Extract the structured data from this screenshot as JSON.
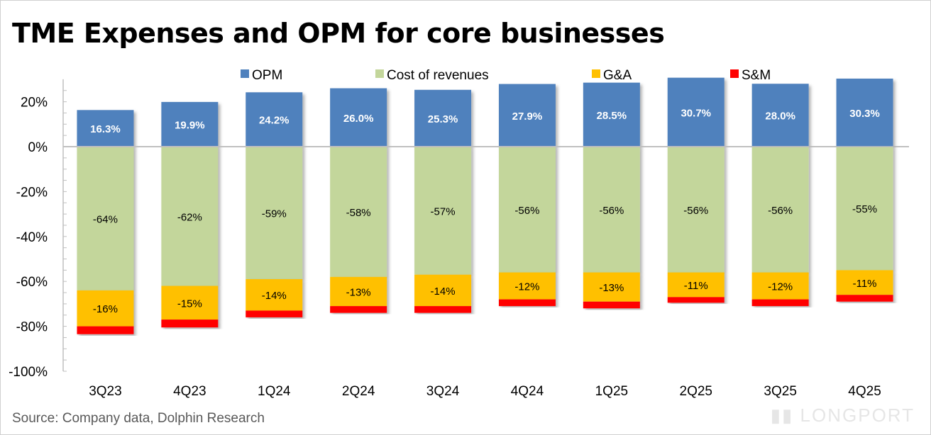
{
  "chart_data": {
    "type": "bar",
    "stacked": true,
    "title": "TME Expenses and OPM for core businesses",
    "categories": [
      "3Q23",
      "4Q23",
      "1Q24",
      "2Q24",
      "3Q24",
      "4Q24",
      "1Q25",
      "2Q25",
      "3Q25",
      "4Q25"
    ],
    "series": [
      {
        "name": "OPM",
        "color": "#4f81bd",
        "values": [
          16.3,
          19.9,
          24.2,
          26.0,
          25.3,
          27.9,
          28.5,
          30.7,
          28.0,
          30.3
        ],
        "labels": [
          "16.3%",
          "19.9%",
          "24.2%",
          "26.0%",
          "25.3%",
          "27.9%",
          "28.5%",
          "30.7%",
          "28.0%",
          "30.3%"
        ]
      },
      {
        "name": "Cost of revenues",
        "color": "#c3d69b",
        "values": [
          -64,
          -62,
          -59,
          -58,
          -57,
          -56,
          -56,
          -56,
          -56,
          -55
        ],
        "labels": [
          "-64%",
          "-62%",
          "-59%",
          "-58%",
          "-57%",
          "-56%",
          "-56%",
          "-56%",
          "-56%",
          "-55%"
        ]
      },
      {
        "name": "G&A",
        "color": "#ffc000",
        "values": [
          -16,
          -15,
          -14,
          -13,
          -14,
          -12,
          -13,
          -11,
          -12,
          -11
        ],
        "labels": [
          "-16%",
          "-15%",
          "-14%",
          "-13%",
          "-14%",
          "-12%",
          "-13%",
          "-11%",
          "-12%",
          "-11%"
        ]
      },
      {
        "name": "S&M",
        "color": "#ff0000",
        "values": [
          -3.5,
          -3.5,
          -3,
          -3,
          -3,
          -3,
          -3,
          -2.5,
          -3,
          -3
        ]
      }
    ],
    "ylim": [
      -100,
      30
    ],
    "yticks": [
      20,
      0,
      -20,
      -40,
      -60,
      -80,
      -100
    ],
    "ytick_labels": [
      "20%",
      "0%",
      "-20%",
      "-40%",
      "-60%",
      "-80%",
      "-100%"
    ],
    "legend": "top",
    "grid": false
  },
  "source": "Source: Company data, Dolphin Research",
  "watermark": "LONGPORT"
}
